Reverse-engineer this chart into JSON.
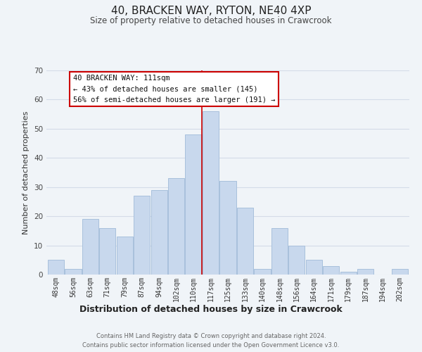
{
  "title": "40, BRACKEN WAY, RYTON, NE40 4XP",
  "subtitle": "Size of property relative to detached houses in Crawcrook",
  "xlabel": "Distribution of detached houses by size in Crawcrook",
  "ylabel": "Number of detached properties",
  "bar_labels": [
    "48sqm",
    "56sqm",
    "63sqm",
    "71sqm",
    "79sqm",
    "87sqm",
    "94sqm",
    "102sqm",
    "110sqm",
    "117sqm",
    "125sqm",
    "133sqm",
    "140sqm",
    "148sqm",
    "156sqm",
    "164sqm",
    "171sqm",
    "179sqm",
    "187sqm",
    "194sqm",
    "202sqm"
  ],
  "bar_values": [
    5,
    2,
    19,
    16,
    13,
    27,
    29,
    33,
    48,
    56,
    32,
    23,
    2,
    16,
    10,
    5,
    3,
    1,
    2,
    0,
    2
  ],
  "bar_color": "#c8d8ed",
  "bar_edge_color": "#a8c0dc",
  "highlight_bar_index": 8,
  "highlight_line_color": "#cc0000",
  "ylim": [
    0,
    70
  ],
  "yticks": [
    0,
    10,
    20,
    30,
    40,
    50,
    60,
    70
  ],
  "annotation_title": "40 BRACKEN WAY: 111sqm",
  "annotation_line1": "← 43% of detached houses are smaller (145)",
  "annotation_line2": "56% of semi-detached houses are larger (191) →",
  "annotation_box_color": "#ffffff",
  "annotation_box_edge_color": "#cc0000",
  "footer_line1": "Contains HM Land Registry data © Crown copyright and database right 2024.",
  "footer_line2": "Contains public sector information licensed under the Open Government Licence v3.0.",
  "background_color": "#f0f4f8",
  "grid_color": "#d4dce8"
}
